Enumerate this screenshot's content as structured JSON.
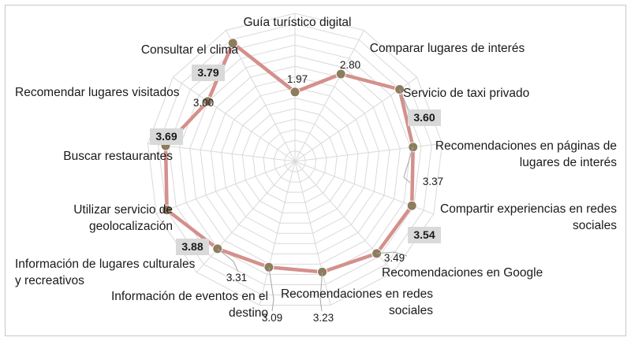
{
  "chart_data": {
    "type": "radar",
    "title": "",
    "rmax": 4.2,
    "ring_step": 0.3,
    "series": [
      {
        "values": [
          1.97,
          2.8,
          3.6,
          3.37,
          3.54,
          3.49,
          3.23,
          3.09,
          3.31,
          3.88,
          3.69,
          3.0,
          3.79
        ]
      }
    ],
    "categories": [
      "Guía turístico digital",
      "Comparar lugares de interés",
      "Servicio de taxi privado",
      "Recomendaciones en páginas de lugares de interés",
      "Compartir experiencias en redes sociales",
      "Recomendaciones en Google",
      "Recomendaciones en redes sociales",
      "Información de eventos en el destino",
      "Información de lugares culturales y recreativos",
      "Utilizar servicio de geolocalización",
      "Buscar restaurantes",
      "Recomendar lugares visitados",
      "Consultar el clima"
    ],
    "category_lines": [
      [
        "Guía turístico digital"
      ],
      [
        "Comparar lugares de interés"
      ],
      [
        "Servicio de taxi privado"
      ],
      [
        "Recomendaciones en páginas de",
        "lugares de interés"
      ],
      [
        "Compartir experiencias en redes",
        "sociales"
      ],
      [
        "Recomendaciones en Google"
      ],
      [
        "Recomendaciones en redes",
        "sociales"
      ],
      [
        "Información de eventos en el",
        "destino"
      ],
      [
        "Información de lugares culturales",
        "y recreativos"
      ],
      [
        "Utilizar servicio de",
        "geolocalización"
      ],
      [
        "Buscar restaurantes"
      ],
      [
        "Recomendar lugares visitados"
      ],
      [
        "Consultar el clima"
      ]
    ],
    "value_labels": [
      "1.97",
      "2.80",
      "3.60",
      "3.37",
      "3.54",
      "3.49",
      "3.23",
      "3.09",
      "3.31",
      "3.88",
      "3.69",
      "3.00",
      "3.79"
    ],
    "highlighted_values": [
      2,
      4,
      9,
      10,
      12
    ],
    "grid": true,
    "colors": {
      "line": "#d4908c",
      "marker_fill": "#8d7d5e",
      "marker_stroke": "#ffffff",
      "grid": "#d9d9d9",
      "highlight_box": "#d9d9d9",
      "leader": "#a6a6a6"
    }
  }
}
